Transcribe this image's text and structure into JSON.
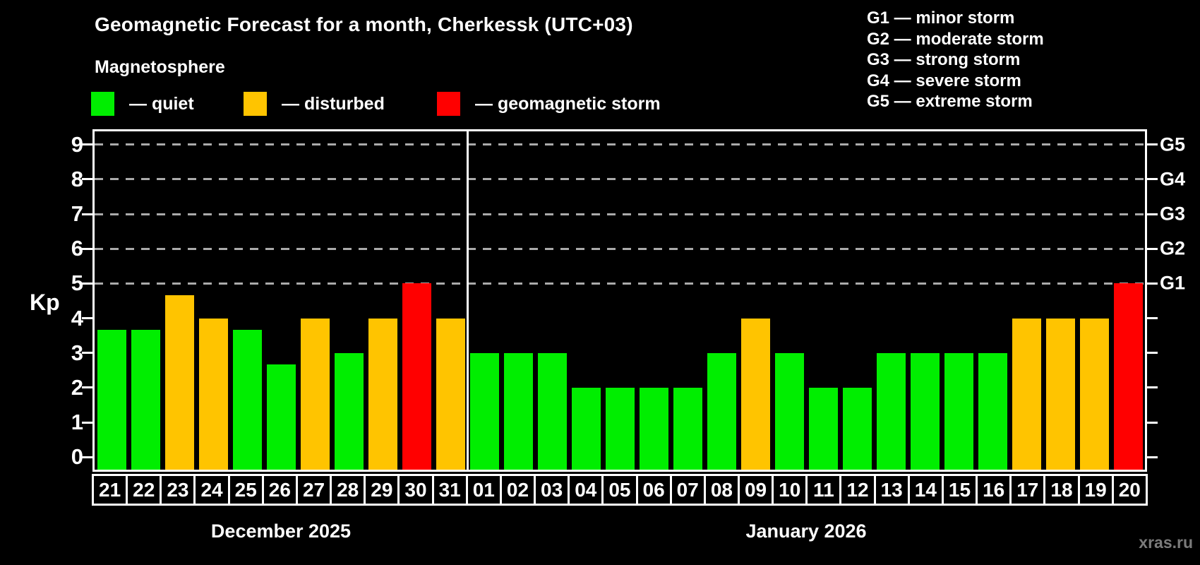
{
  "title": "Geomagnetic Forecast for a month, Cherkessk (UTC+03)",
  "subtitle": "Magnetosphere",
  "status_colors": {
    "quiet": "#00ee00",
    "disturbed": "#ffc400",
    "storm": "#ff0000"
  },
  "status_legend": [
    {
      "key": "quiet",
      "label": "— quiet"
    },
    {
      "key": "disturbed",
      "label": "— disturbed"
    },
    {
      "key": "storm",
      "label": "— geomagnetic storm"
    }
  ],
  "g_scale_legend": [
    {
      "code": "G1",
      "desc": "minor storm"
    },
    {
      "code": "G2",
      "desc": "moderate storm"
    },
    {
      "code": "G3",
      "desc": "strong storm"
    },
    {
      "code": "G4",
      "desc": "severe storm"
    },
    {
      "code": "G5",
      "desc": "extreme storm"
    }
  ],
  "watermark": "xras.ru",
  "chart_data": {
    "type": "bar",
    "title": "Geomagnetic Forecast for a month, Cherkessk (UTC+03)",
    "ylabel": "Kp",
    "ylim": [
      0,
      9
    ],
    "yticks": [
      0,
      1,
      2,
      3,
      4,
      5,
      6,
      7,
      8,
      9
    ],
    "gridlines_at": [
      5,
      6,
      7,
      8,
      9
    ],
    "grid": "dashed-horizontal",
    "legend_position": "top-left",
    "right_axis_labels": [
      {
        "kp": 5,
        "label": "G1"
      },
      {
        "kp": 6,
        "label": "G2"
      },
      {
        "kp": 7,
        "label": "G3"
      },
      {
        "kp": 8,
        "label": "G4"
      },
      {
        "kp": 9,
        "label": "G5"
      }
    ],
    "month_groups": [
      {
        "label": "December 2025",
        "count": 11
      },
      {
        "label": "January 2026",
        "count": 20
      }
    ],
    "categories": [
      "21",
      "22",
      "23",
      "24",
      "25",
      "26",
      "27",
      "28",
      "29",
      "30",
      "31",
      "01",
      "02",
      "03",
      "04",
      "05",
      "06",
      "07",
      "08",
      "09",
      "10",
      "11",
      "12",
      "13",
      "14",
      "15",
      "16",
      "17",
      "18",
      "19",
      "20"
    ],
    "values": [
      3.67,
      3.67,
      4.67,
      4,
      3.67,
      2.67,
      4,
      3,
      4,
      5,
      4,
      3,
      3,
      3,
      2,
      2,
      2,
      2,
      3,
      4,
      3,
      2,
      2,
      3,
      3,
      3,
      3,
      4,
      4,
      4,
      5
    ],
    "statuses": [
      "quiet",
      "quiet",
      "disturbed",
      "disturbed",
      "quiet",
      "quiet",
      "disturbed",
      "quiet",
      "disturbed",
      "storm",
      "disturbed",
      "quiet",
      "quiet",
      "quiet",
      "quiet",
      "quiet",
      "quiet",
      "quiet",
      "quiet",
      "disturbed",
      "quiet",
      "quiet",
      "quiet",
      "quiet",
      "quiet",
      "quiet",
      "quiet",
      "disturbed",
      "disturbed",
      "disturbed",
      "storm"
    ]
  }
}
